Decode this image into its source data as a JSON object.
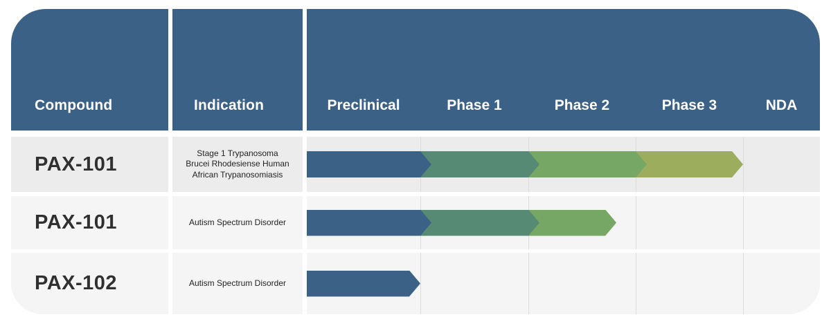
{
  "header": {
    "compound_label": "Compound",
    "indication_label": "Indication",
    "phases": [
      "Preclinical",
      "Phase 1",
      "Phase 2",
      "Phase 3",
      "NDA"
    ]
  },
  "colors": {
    "header_bg": "#3c6186",
    "preclinical_segment": "#3c6186",
    "phase1_segment": "#578a74",
    "phase2_segment": "#77a765",
    "phase3_segment": "#9cad5d",
    "row_first_bg": "#ececec",
    "row_other_bg": "#f5f5f5",
    "gridline": "#dcdcdc",
    "header_text": "#ffffff",
    "compound_text": "#303030"
  },
  "chart_data": {
    "type": "bar",
    "subtype": "drug-pipeline-chevron-gantt",
    "orientation": "horizontal",
    "phase_columns": [
      "Preclinical",
      "Phase 1",
      "Phase 2",
      "Phase 3",
      "NDA"
    ],
    "axis_note": "segment start/end are in phase-column units: 0=start of Preclinical, 1=start of Phase 1, 2=start of Phase 2, 3=start of Phase 3, 4=start of NDA",
    "rows": [
      {
        "compound": "PAX-101",
        "indication": "Stage 1 Trypanosoma Brucei Rhodesiense Human African Trypanosomiasis",
        "segments": [
          {
            "phase": "Preclinical",
            "start": 0,
            "end": 1,
            "color": "#3c6186",
            "overshoot": true
          },
          {
            "phase": "Phase 1",
            "start": 1,
            "end": 2,
            "color": "#578a74",
            "overshoot": true
          },
          {
            "phase": "Phase 2",
            "start": 2,
            "end": 3,
            "color": "#77a765",
            "overshoot": true
          },
          {
            "phase": "Phase 3",
            "start": 3,
            "end": 4,
            "color": "#9cad5d",
            "overshoot": false
          }
        ]
      },
      {
        "compound": "PAX-101",
        "indication": "Autism Spectrum Disorder",
        "segments": [
          {
            "phase": "Preclinical",
            "start": 0,
            "end": 1,
            "color": "#3c6186",
            "overshoot": true
          },
          {
            "phase": "Phase 1",
            "start": 1,
            "end": 2,
            "color": "#578a74",
            "overshoot": true
          },
          {
            "phase": "Phase 2",
            "start": 2,
            "end": 2.82,
            "color": "#77a765",
            "overshoot": false
          }
        ]
      },
      {
        "compound": "PAX-102",
        "indication": "Autism Spectrum Disorder",
        "segments": [
          {
            "phase": "Preclinical",
            "start": 0,
            "end": 1,
            "color": "#3c6186",
            "overshoot": false
          }
        ]
      }
    ]
  }
}
